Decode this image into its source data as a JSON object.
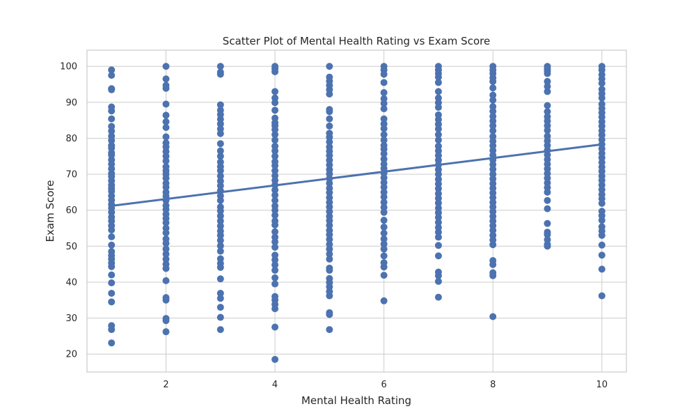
{
  "chart_data": {
    "type": "scatter",
    "title": "Scatter Plot of Mental Health Rating vs Exam Score",
    "xlabel": "Mental Health Rating",
    "ylabel": "Exam Score",
    "xlim": [
      0.55,
      10.45
    ],
    "ylim": [
      15,
      104.5
    ],
    "x_ticks": [
      2,
      4,
      6,
      8,
      10
    ],
    "y_ticks": [
      20,
      30,
      40,
      50,
      60,
      70,
      80,
      90,
      100
    ],
    "grid": true,
    "point_color": "#4c72b0",
    "line_color": "#4c72b0",
    "regression_line": {
      "x": [
        1,
        10
      ],
      "y": [
        61.2,
        78.3
      ]
    },
    "series": [
      {
        "x": 1,
        "y": [
          99,
          97.5,
          93.8,
          93.5,
          88.7,
          87.6,
          85.4,
          83.3,
          82.0,
          80.6,
          79.4,
          78.0,
          77.3,
          76.0,
          75.3,
          74.0,
          72.8,
          71.5,
          70.2,
          69.4,
          68.2,
          67.0,
          66.1,
          65.3,
          64.0,
          62.8,
          61.6,
          60.6,
          59.4,
          58.1,
          57.0,
          55.7,
          54.5,
          52.6,
          50.3,
          48.5,
          47.4,
          46.4,
          45.3,
          44.3,
          42.0,
          39.8,
          36.9,
          34.5,
          27.9,
          26.8,
          23.1
        ]
      },
      {
        "x": 2,
        "y": [
          100,
          96.5,
          94.7,
          93.9,
          89.5,
          86.4,
          84.6,
          83.0,
          80.4,
          78.7,
          77.6,
          76.3,
          75.0,
          73.7,
          72.1,
          71.0,
          70.0,
          68.9,
          67.5,
          66.4,
          65.0,
          63.9,
          62.7,
          61.3,
          60.2,
          58.9,
          57.7,
          56.5,
          55.0,
          53.7,
          52.0,
          50.8,
          49.2,
          47.8,
          46.4,
          45.0,
          43.8,
          40.4,
          35.7,
          35.0,
          29.9,
          29.3,
          26.2
        ]
      },
      {
        "x": 3,
        "y": [
          100,
          98.4,
          97.8,
          89.3,
          87.8,
          86.6,
          85.3,
          84.0,
          82.6,
          81.3,
          78.5,
          76.5,
          75.0,
          73.4,
          72.1,
          71.0,
          69.5,
          68.1,
          66.8,
          65.4,
          64.0,
          62.7,
          60.9,
          59.8,
          58.4,
          57.0,
          55.6,
          54.2,
          53.0,
          51.6,
          50.1,
          48.6,
          46.5,
          45.2,
          44.1,
          40.9,
          36.9,
          35.5,
          33.0,
          30.2,
          26.8
        ]
      },
      {
        "x": 4,
        "y": [
          100,
          99.3,
          98.5,
          93.0,
          91.2,
          89.9,
          87.8,
          85.6,
          84.3,
          83.5,
          82.4,
          81.0,
          79.5,
          77.8,
          76.5,
          75.0,
          73.5,
          72.4,
          71.0,
          69.6,
          68.3,
          67.0,
          65.6,
          64.2,
          62.7,
          61.2,
          60.0,
          58.6,
          57.0,
          55.9,
          54.0,
          52.5,
          51.2,
          49.7,
          47.5,
          46.2,
          44.8,
          43.3,
          41.2,
          39.5,
          36.0,
          35.0,
          33.8,
          32.6,
          27.5,
          18.5
        ]
      },
      {
        "x": 5,
        "y": [
          100,
          97.0,
          95.9,
          94.7,
          93.5,
          92.3,
          88.0,
          87.4,
          85.4,
          83.4,
          81.4,
          80.3,
          79.0,
          77.6,
          76.4,
          75.2,
          73.9,
          72.6,
          71.3,
          70.1,
          68.8,
          67.5,
          66.1,
          64.9,
          63.5,
          62.2,
          60.9,
          59.6,
          58.3,
          57.1,
          55.8,
          54.4,
          53.2,
          51.9,
          50.5,
          49.2,
          47.8,
          46.4,
          43.9,
          43.3,
          41.0,
          39.9,
          38.7,
          37.4,
          36.2,
          31.5,
          31.0,
          26.8
        ]
      },
      {
        "x": 6,
        "y": [
          100,
          99.0,
          97.8,
          95.5,
          92.7,
          91.0,
          89.7,
          88.2,
          85.4,
          84.0,
          82.7,
          81.0,
          79.5,
          78.0,
          77.0,
          75.7,
          74.2,
          72.8,
          71.6,
          70.3,
          69.0,
          67.7,
          66.4,
          65.0,
          63.7,
          62.2,
          60.8,
          59.4,
          57.2,
          55.3,
          53.6,
          52.0,
          50.6,
          49.2,
          47.3,
          45.4,
          44.2,
          41.9,
          34.8
        ]
      },
      {
        "x": 7,
        "y": [
          100,
          99.0,
          98.0,
          97.0,
          95.5,
          93.0,
          91.2,
          89.9,
          88.6,
          86.5,
          85.2,
          83.9,
          82.6,
          81.0,
          79.5,
          77.8,
          76.5,
          75.2,
          73.9,
          72.6,
          71.3,
          70.0,
          68.6,
          67.3,
          66.0,
          64.6,
          63.3,
          62.0,
          60.6,
          59.3,
          58.0,
          56.6,
          55.2,
          53.9,
          52.5,
          50.2,
          47.3,
          42.8,
          41.8,
          40.2,
          35.8
        ]
      },
      {
        "x": 8,
        "y": [
          100,
          99.0,
          98.0,
          96.8,
          95.8,
          94.0,
          92.0,
          90.6,
          88.8,
          87.5,
          86.1,
          84.8,
          83.5,
          82.1,
          80.5,
          79.2,
          77.9,
          76.6,
          75.3,
          74.0,
          72.7,
          71.4,
          70.0,
          68.7,
          67.4,
          66.1,
          64.8,
          63.5,
          62.2,
          60.9,
          59.6,
          58.3,
          57.0,
          55.7,
          54.4,
          53.0,
          51.7,
          50.4,
          46.0,
          44.9,
          42.6,
          41.8,
          30.4
        ]
      },
      {
        "x": 9,
        "y": [
          100,
          99.3,
          98.7,
          98.0,
          95.8,
          94.4,
          93.0,
          89.1,
          87.4,
          86.0,
          84.8,
          83.5,
          82.2,
          80.6,
          79.3,
          78.0,
          76.7,
          75.4,
          74.1,
          72.8,
          71.5,
          70.2,
          68.9,
          67.6,
          66.3,
          65.0,
          62.7,
          60.4,
          56.3,
          53.9,
          53.2,
          51.8,
          50.5,
          50.0
        ]
      },
      {
        "x": 10,
        "y": [
          100,
          99.0,
          97.7,
          96.5,
          95.3,
          93.6,
          92.4,
          91.2,
          89.5,
          88.3,
          87.1,
          85.9,
          84.6,
          83.4,
          82.1,
          80.9,
          79.6,
          78.3,
          77.1,
          75.8,
          74.6,
          73.3,
          72.0,
          70.8,
          69.5,
          68.3,
          67.0,
          65.7,
          64.4,
          63.2,
          61.9,
          59.7,
          58.5,
          57.2,
          55.4,
          54.2,
          53.0,
          50.3,
          47.5,
          43.6,
          36.2
        ]
      }
    ]
  }
}
